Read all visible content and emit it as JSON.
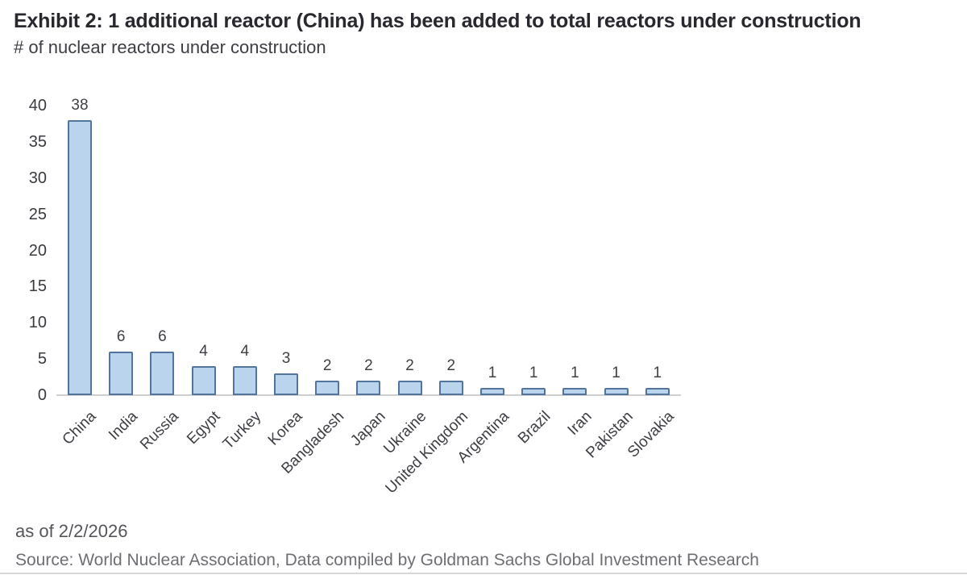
{
  "header": {
    "title": "Exhibit 2: 1 additional reactor (China) has been added to total reactors under construction",
    "subtitle": "# of nuclear reactors under construction"
  },
  "chart_data": {
    "type": "bar",
    "title": "Exhibit 2: 1 additional reactor (China) has been added to total reactors under construction",
    "subtitle": "# of nuclear reactors under construction",
    "categories": [
      "China",
      "India",
      "Russia",
      "Egypt",
      "Turkey",
      "Korea",
      "Bangladesh",
      "Japan",
      "Ukraine",
      "United Kingdom",
      "Argentina",
      "Brazil",
      "Iran",
      "Pakistan",
      "Slovakia"
    ],
    "values": [
      38,
      6,
      6,
      4,
      4,
      3,
      2,
      2,
      2,
      2,
      1,
      1,
      1,
      1,
      1
    ],
    "xlabel": "",
    "ylabel": "# of nuclear reactors under construction",
    "ylim": [
      0,
      40
    ],
    "yticks": [
      0,
      5,
      10,
      15,
      20,
      25,
      30,
      35,
      40
    ],
    "grid": false,
    "legend": false,
    "data_labels": true,
    "x_label_rotation_deg": -45
  },
  "colors": {
    "bar_fill": "#b9d4ec",
    "bar_border": "#53749b",
    "baseline": "#cfcfd1",
    "title_text": "#28282e",
    "axis_text": "#3a3a40"
  },
  "footer": {
    "as_of": "as of 2/2/2026",
    "source": "Source: World Nuclear Association, Data compiled by Goldman Sachs Global Investment Research"
  }
}
